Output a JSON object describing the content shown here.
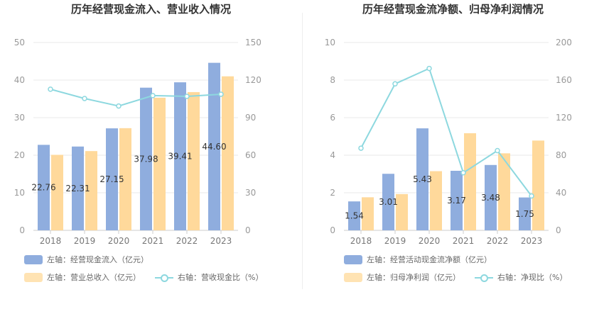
{
  "colors": {
    "bar1": "#8fadde",
    "bar2": "#ffd99b",
    "line": "#8dd8df",
    "grid": "#e8e8e8",
    "axis": "#999999",
    "label": "#333333"
  },
  "left": {
    "title": "历年经营现金流入、营业收入情况",
    "legend": {
      "bar1": "左轴：经营现金流入（亿元）",
      "bar2": "左轴：营业总收入（亿元）",
      "line": "右轴：营收现金比（%）"
    },
    "chart_data": {
      "type": "bar",
      "categories": [
        "2018",
        "2019",
        "2020",
        "2021",
        "2022",
        "2023"
      ],
      "series": [
        {
          "name": "左轴：经营现金流入（亿元）",
          "axis": "left",
          "values": [
            22.76,
            22.31,
            27.15,
            37.98,
            39.41,
            44.6
          ],
          "labels": [
            "22.76",
            "22.31",
            "27.15",
            "37.98",
            "39.41",
            "44.60"
          ]
        },
        {
          "name": "左轴：营业总收入（亿元）",
          "axis": "left",
          "values": [
            20.1,
            21.1,
            27.2,
            35.3,
            36.8,
            41.0
          ]
        },
        {
          "name": "右轴：营收现金比（%）",
          "axis": "right",
          "type": "line",
          "values": [
            112.7,
            105.3,
            99.3,
            107.6,
            107.0,
            108.7
          ]
        }
      ],
      "y_left": {
        "min": 0,
        "max": 50,
        "ticks": [
          "0",
          "10",
          "20",
          "30",
          "40",
          "50"
        ]
      },
      "y_right": {
        "min": 0,
        "max": 150,
        "ticks": [
          "0",
          "30",
          "60",
          "90",
          "120",
          "150"
        ]
      },
      "grid": true
    }
  },
  "right": {
    "title": "历年经营现金流净额、归母净利润情况",
    "legend": {
      "bar1": "左轴：经营活动现金流净额（亿元）",
      "bar2": "左轴：归母净利润（亿元）",
      "line": "右轴：净现比（%）"
    },
    "chart_data": {
      "type": "bar",
      "categories": [
        "2018",
        "2019",
        "2020",
        "2021",
        "2022",
        "2023"
      ],
      "series": [
        {
          "name": "左轴：经营活动现金流净额（亿元）",
          "axis": "left",
          "values": [
            1.54,
            3.01,
            5.43,
            3.17,
            3.48,
            1.75
          ],
          "labels": [
            "1.54",
            "3.01",
            "5.43",
            "3.17",
            "3.48",
            "1.75"
          ]
        },
        {
          "name": "左轴：归母净利润（亿元）",
          "axis": "left",
          "values": [
            1.76,
            1.93,
            3.15,
            5.17,
            4.1,
            4.78
          ]
        },
        {
          "name": "右轴：净现比（%）",
          "axis": "right",
          "type": "line",
          "values": [
            87.5,
            156.0,
            172.4,
            61.3,
            84.9,
            36.6
          ]
        }
      ],
      "y_left": {
        "min": 0,
        "max": 10,
        "ticks": [
          "0",
          "2",
          "4",
          "6",
          "8",
          "10"
        ]
      },
      "y_right": {
        "min": 0,
        "max": 200,
        "ticks": [
          "0",
          "40",
          "80",
          "120",
          "160",
          "200"
        ]
      },
      "grid": true
    }
  }
}
